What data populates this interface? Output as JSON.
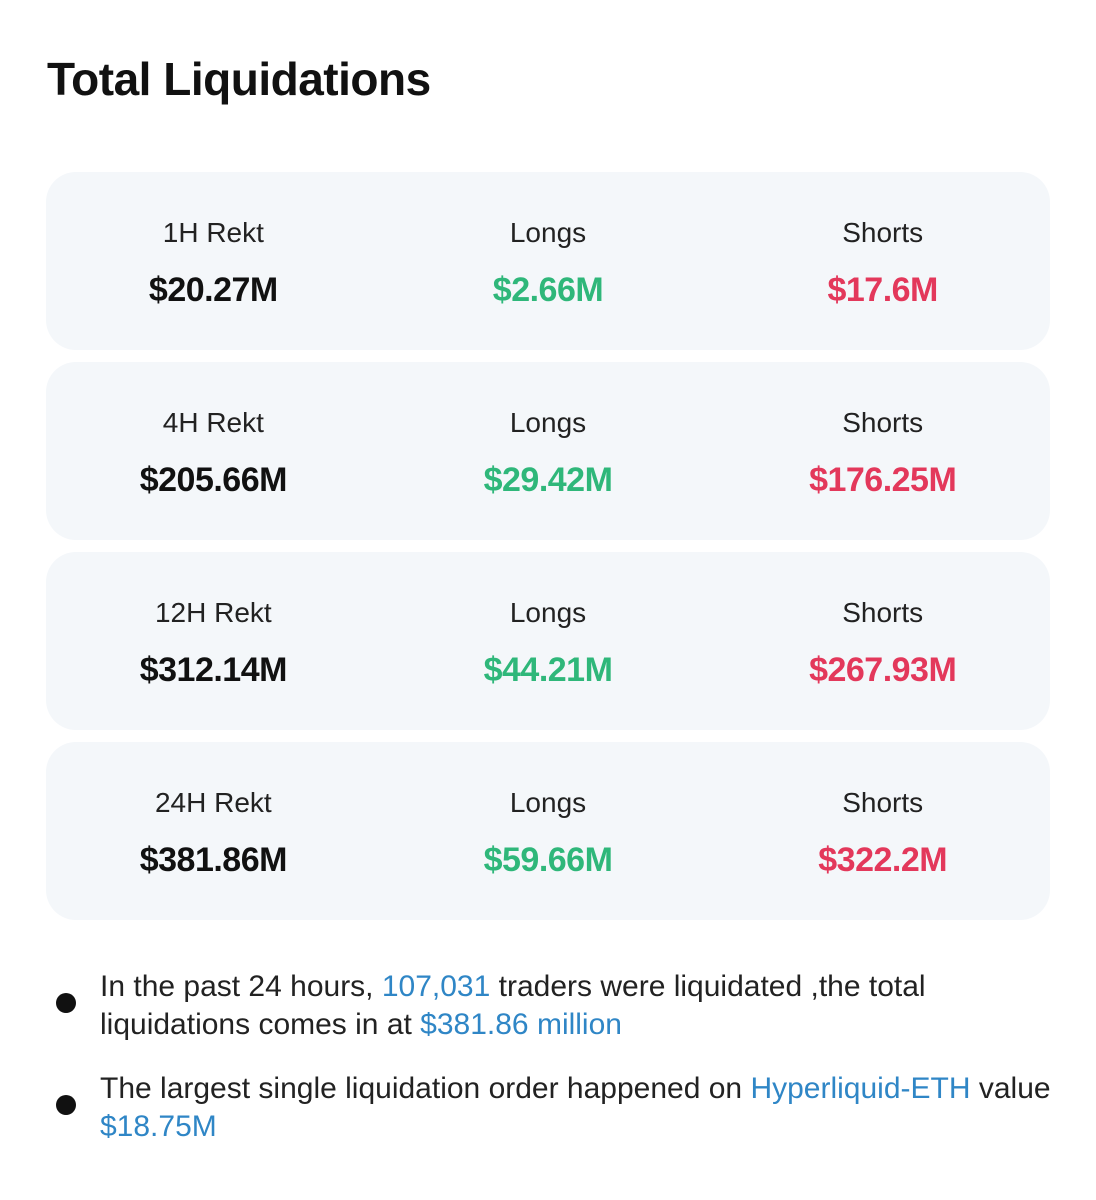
{
  "title": "Total Liquidations",
  "colors": {
    "card_background": "#f4f7fa",
    "longs": "#2fb77a",
    "shorts": "#e3385b",
    "highlight": "#2f86c6"
  },
  "periods": [
    {
      "label": "1H Rekt",
      "total": "$20.27M",
      "longs_label": "Longs",
      "longs": "$2.66M",
      "shorts_label": "Shorts",
      "shorts": "$17.6M"
    },
    {
      "label": "4H Rekt",
      "total": "$205.66M",
      "longs_label": "Longs",
      "longs": "$29.42M",
      "shorts_label": "Shorts",
      "shorts": "$176.25M"
    },
    {
      "label": "12H Rekt",
      "total": "$312.14M",
      "longs_label": "Longs",
      "longs": "$44.21M",
      "shorts_label": "Shorts",
      "shorts": "$267.93M"
    },
    {
      "label": "24H Rekt",
      "total": "$381.86M",
      "longs_label": "Longs",
      "longs": "$59.66M",
      "shorts_label": "Shorts",
      "shorts": "$322.2M"
    }
  ],
  "notes": {
    "traders": {
      "prefix": "In the past 24 hours, ",
      "count": "107,031",
      "middle": " traders were liquidated ,the total liquidations comes in at ",
      "amount": "$381.86 million"
    },
    "largest": {
      "prefix": "The largest single liquidation order happened on ",
      "market": "Hyperliquid-ETH",
      "middle": " value ",
      "amount": "$18.75M"
    }
  }
}
